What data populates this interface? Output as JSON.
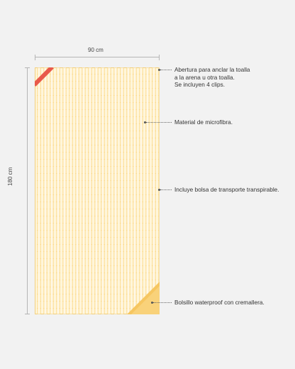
{
  "dimensions": {
    "width": "90 cm",
    "height": "180 cm"
  },
  "callouts": [
    {
      "lines": [
        "Abertura para anclar la toalla",
        "a la arena u otra toalla.",
        "Se incluyen 4 clips."
      ]
    },
    {
      "lines": [
        "Material de microfibra."
      ]
    },
    {
      "lines": [
        "Incluye bolsa de transporte transpirable."
      ]
    },
    {
      "lines": [
        "Bolsillo waterproof con cremallera."
      ]
    }
  ],
  "colors": {
    "towel": "#fde4a8",
    "tag": "#e8594a",
    "pocket": "#f6c660",
    "background": "#f2f2f2"
  }
}
